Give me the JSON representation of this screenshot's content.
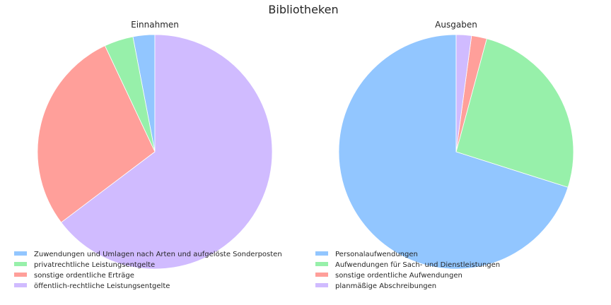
{
  "figure_title": "Bibliotheken",
  "chart_data": [
    {
      "type": "pie",
      "title": "Einnahmen",
      "start_angle_deg": 90,
      "direction": "counterclockwise",
      "legend_position": "lower-left",
      "slices": [
        {
          "label": "Zuwendungen und Umlagen nach Arten und aufgelöste Sonderposten",
          "percent": 3.0,
          "color": "#92c6ff"
        },
        {
          "label": "privatrechtliche Leistungsentgelte",
          "percent": 4.0,
          "color": "#97f0aa"
        },
        {
          "label": "sonstige ordentliche Erträge",
          "percent": 28.3,
          "color": "#ff9f9a"
        },
        {
          "label": "öffentlich-rechtliche Leistungsentgelte",
          "percent": 64.7,
          "color": "#d0bbff"
        }
      ]
    },
    {
      "type": "pie",
      "title": "Ausgaben",
      "start_angle_deg": 90,
      "direction": "counterclockwise",
      "legend_position": "lower-left",
      "slices": [
        {
          "label": "Personalaufwendungen",
          "percent": 70.1,
          "color": "#92c6ff"
        },
        {
          "label": "Aufwendungen für Sach- und Dienstleistungen",
          "percent": 25.7,
          "color": "#97f0aa"
        },
        {
          "label": "sonstige ordentliche Aufwendungen",
          "percent": 2.1,
          "color": "#ff9f9a"
        },
        {
          "label": "planmäßige Abschreibungen",
          "percent": 2.1,
          "color": "#d0bbff"
        }
      ]
    }
  ]
}
